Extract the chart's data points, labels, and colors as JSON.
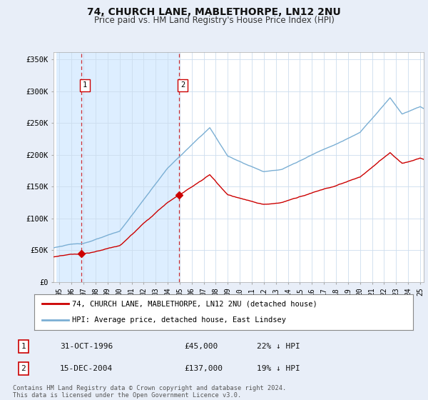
{
  "title": "74, CHURCH LANE, MABLETHORPE, LN12 2NU",
  "subtitle": "Price paid vs. HM Land Registry's House Price Index (HPI)",
  "ylabel_ticks": [
    "£0",
    "£50K",
    "£100K",
    "£150K",
    "£200K",
    "£250K",
    "£300K",
    "£350K"
  ],
  "ytick_vals": [
    0,
    50000,
    100000,
    150000,
    200000,
    250000,
    300000,
    350000
  ],
  "ylim": [
    0,
    362000
  ],
  "xlim_start": 1994.5,
  "xlim_end": 2025.3,
  "hpi_color": "#7bafd4",
  "price_color": "#cc0000",
  "shade_color": "#ddeeff",
  "hatch_color": "#cccccc",
  "sale1_x": 1996.83,
  "sale1_y": 45000,
  "sale2_x": 2004.96,
  "sale2_y": 137000,
  "legend_entries": [
    "74, CHURCH LANE, MABLETHORPE, LN12 2NU (detached house)",
    "HPI: Average price, detached house, East Lindsey"
  ],
  "table_rows": [
    [
      "1",
      "31-OCT-1996",
      "£45,000",
      "22% ↓ HPI"
    ],
    [
      "2",
      "15-DEC-2004",
      "£137,000",
      "19% ↓ HPI"
    ]
  ],
  "footnote": "Contains HM Land Registry data © Crown copyright and database right 2024.\nThis data is licensed under the Open Government Licence v3.0.",
  "bg_color": "#e8eef8",
  "plot_bg_color": "#ffffff",
  "grid_color": "#ccddee"
}
